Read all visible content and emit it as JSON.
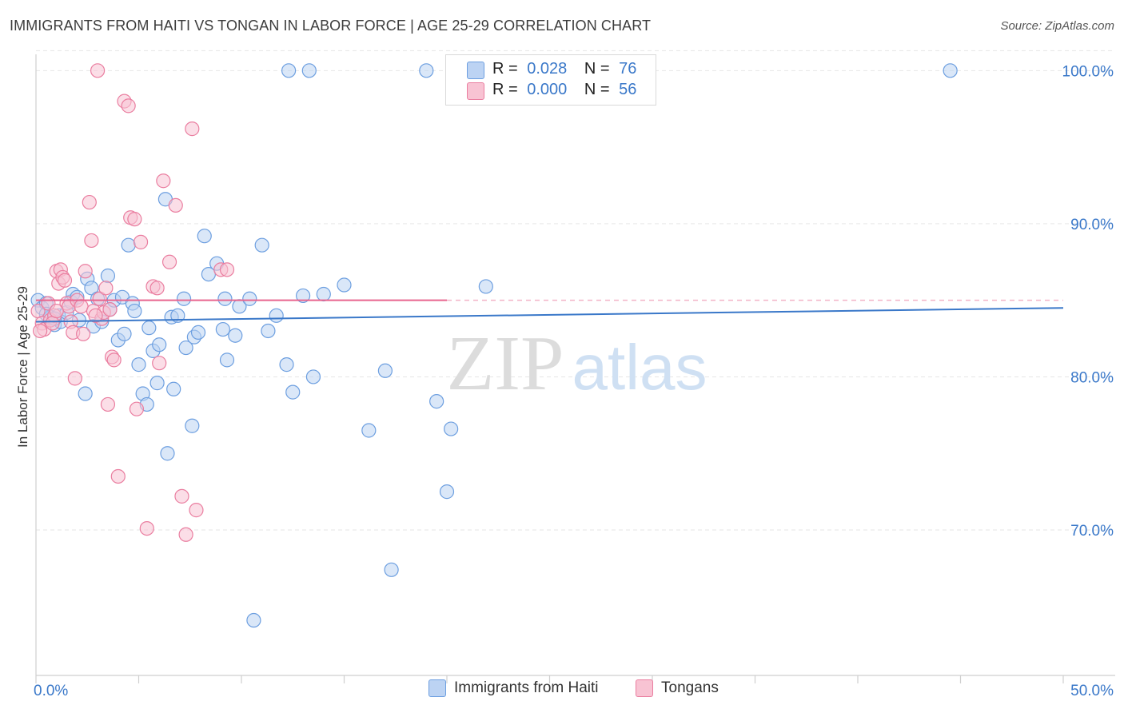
{
  "header": {
    "title": "IMMIGRANTS FROM HAITI VS TONGAN IN LABOR FORCE | AGE 25-29 CORRELATION CHART",
    "source": "Source: ZipAtlas.com"
  },
  "watermark": {
    "zip": "ZIP",
    "atlas": "atlas"
  },
  "legend": {
    "r_label": "R =",
    "n_label": "N =",
    "series": [
      {
        "name": "Immigrants from Haiti",
        "r": "0.028",
        "n": "76",
        "color": "#6d9fe0",
        "fill": "#bcd3f3"
      },
      {
        "name": "Tongans",
        "r": "0.000",
        "n": "56",
        "color": "#ea7ea0",
        "fill": "#f8c3d3"
      }
    ]
  },
  "chart_data": {
    "type": "scatter",
    "title": "IMMIGRANTS FROM HAITI VS TONGAN IN LABOR FORCE | AGE 25-29 CORRELATION CHART",
    "xlabel": "",
    "ylabel": "In Labor Force | Age 25-29",
    "xlim": [
      0,
      50
    ],
    "ylim": [
      60.5,
      102
    ],
    "x_tick_labels": [
      "0.0%",
      "50.0%"
    ],
    "y_ticks": [
      70,
      80,
      90,
      100
    ],
    "y_tick_labels": [
      "70.0%",
      "80.0%",
      "90.0%",
      "100.0%"
    ],
    "grid": "horizontal dashed",
    "legend_position": "top-center",
    "series": [
      {
        "name": "Immigrants from Haiti",
        "color": "#6d9fe0",
        "trend": {
          "x": [
            0,
            50
          ],
          "y": [
            83.6,
            84.5
          ]
        },
        "points": [
          [
            0.1,
            85.0
          ],
          [
            0.3,
            84.5
          ],
          [
            0.5,
            84.8
          ],
          [
            0.7,
            83.9
          ],
          [
            0.9,
            83.4
          ],
          [
            1.1,
            84.0
          ],
          [
            1.2,
            83.6
          ],
          [
            1.5,
            84.2
          ],
          [
            1.7,
            84.9
          ],
          [
            1.8,
            85.4
          ],
          [
            2.0,
            85.2
          ],
          [
            2.1,
            83.7
          ],
          [
            2.4,
            78.9
          ],
          [
            2.5,
            86.4
          ],
          [
            2.7,
            85.8
          ],
          [
            2.8,
            83.3
          ],
          [
            3.0,
            85.1
          ],
          [
            3.2,
            83.6
          ],
          [
            3.5,
            86.6
          ],
          [
            3.6,
            84.4
          ],
          [
            3.8,
            85.0
          ],
          [
            4.0,
            82.4
          ],
          [
            4.2,
            85.2
          ],
          [
            4.3,
            82.8
          ],
          [
            4.5,
            88.6
          ],
          [
            4.7,
            84.8
          ],
          [
            4.8,
            84.3
          ],
          [
            5.0,
            80.8
          ],
          [
            5.2,
            78.9
          ],
          [
            5.4,
            78.2
          ],
          [
            5.5,
            83.2
          ],
          [
            5.7,
            81.7
          ],
          [
            5.9,
            79.6
          ],
          [
            6.0,
            82.1
          ],
          [
            6.3,
            91.6
          ],
          [
            6.4,
            75.0
          ],
          [
            6.6,
            83.9
          ],
          [
            6.7,
            79.2
          ],
          [
            6.9,
            84.0
          ],
          [
            7.2,
            85.1
          ],
          [
            7.3,
            81.9
          ],
          [
            7.6,
            76.8
          ],
          [
            7.7,
            82.6
          ],
          [
            7.9,
            82.9
          ],
          [
            8.2,
            89.2
          ],
          [
            8.4,
            86.7
          ],
          [
            8.8,
            87.4
          ],
          [
            9.1,
            83.1
          ],
          [
            9.2,
            85.1
          ],
          [
            9.3,
            81.1
          ],
          [
            9.7,
            82.7
          ],
          [
            9.9,
            84.6
          ],
          [
            10.4,
            85.1
          ],
          [
            10.6,
            64.1
          ],
          [
            11.0,
            88.6
          ],
          [
            11.3,
            83.0
          ],
          [
            11.7,
            84.0
          ],
          [
            12.2,
            80.8
          ],
          [
            12.5,
            79.0
          ],
          [
            13.0,
            85.3
          ],
          [
            13.5,
            80.0
          ],
          [
            14.0,
            85.4
          ],
          [
            15.0,
            86.0
          ],
          [
            16.2,
            76.5
          ],
          [
            17.0,
            80.4
          ],
          [
            19.5,
            78.4
          ],
          [
            20.0,
            72.5
          ],
          [
            20.2,
            76.6
          ],
          [
            21.9,
            85.9
          ],
          [
            17.3,
            67.4
          ],
          [
            12.3,
            100.0
          ],
          [
            13.3,
            100.0
          ],
          [
            19.0,
            100.0
          ],
          [
            44.5,
            100.0
          ],
          [
            0.5,
            84.1
          ],
          [
            0.9,
            83.8
          ]
        ]
      },
      {
        "name": "Tongans",
        "color": "#ea7ea0",
        "trend": {
          "x": [
            0,
            20
          ],
          "y": [
            85.0,
            85.0
          ]
        },
        "trend_extension": {
          "x": [
            20,
            50
          ],
          "y": [
            85.0,
            85.0
          ]
        },
        "points": [
          [
            0.1,
            84.3
          ],
          [
            0.3,
            83.5
          ],
          [
            0.4,
            83.1
          ],
          [
            0.6,
            84.8
          ],
          [
            0.7,
            83.7
          ],
          [
            0.9,
            84.0
          ],
          [
            1.0,
            86.9
          ],
          [
            1.1,
            86.1
          ],
          [
            1.2,
            87.0
          ],
          [
            1.3,
            86.5
          ],
          [
            1.4,
            86.3
          ],
          [
            1.5,
            84.8
          ],
          [
            1.6,
            84.6
          ],
          [
            1.7,
            83.6
          ],
          [
            1.8,
            82.9
          ],
          [
            1.9,
            79.9
          ],
          [
            2.0,
            85.0
          ],
          [
            2.2,
            84.6
          ],
          [
            2.4,
            86.9
          ],
          [
            2.6,
            91.4
          ],
          [
            2.7,
            88.9
          ],
          [
            2.8,
            84.3
          ],
          [
            3.0,
            100.0
          ],
          [
            3.1,
            85.1
          ],
          [
            3.2,
            83.8
          ],
          [
            3.3,
            84.2
          ],
          [
            3.4,
            85.8
          ],
          [
            3.5,
            78.2
          ],
          [
            3.7,
            81.3
          ],
          [
            3.8,
            81.1
          ],
          [
            4.0,
            73.5
          ],
          [
            4.3,
            98.0
          ],
          [
            4.5,
            97.7
          ],
          [
            4.6,
            90.4
          ],
          [
            4.8,
            90.3
          ],
          [
            4.9,
            77.9
          ],
          [
            5.1,
            88.8
          ],
          [
            5.4,
            70.1
          ],
          [
            5.7,
            85.9
          ],
          [
            5.9,
            85.8
          ],
          [
            6.0,
            80.9
          ],
          [
            6.2,
            92.8
          ],
          [
            6.5,
            87.5
          ],
          [
            6.8,
            91.2
          ],
          [
            7.1,
            72.2
          ],
          [
            7.3,
            69.7
          ],
          [
            7.6,
            96.2
          ],
          [
            7.8,
            71.3
          ],
          [
            9.0,
            87.0
          ],
          [
            9.3,
            87.0
          ],
          [
            0.2,
            83.0
          ],
          [
            0.8,
            83.5
          ],
          [
            1.0,
            84.3
          ],
          [
            2.3,
            82.8
          ],
          [
            2.9,
            84.0
          ],
          [
            3.6,
            84.4
          ]
        ]
      }
    ]
  }
}
